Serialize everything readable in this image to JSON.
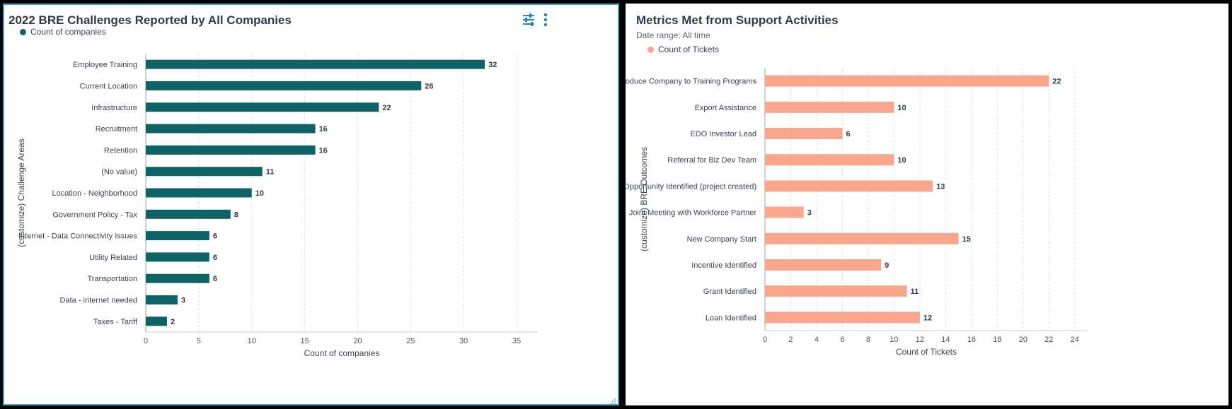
{
  "left_panel": {
    "title": "2022 BRE Challenges Reported by All Companies",
    "legend_label": "Count of companies",
    "icons": {
      "filter": "sliders-icon",
      "menu": "more-vertical-icon"
    }
  },
  "right_panel": {
    "title": "Metrics Met from Support Activities",
    "date_range_label": "Date range:",
    "date_range_value": "All time",
    "legend_label": "Count of Tickets"
  },
  "chart_data": [
    {
      "type": "bar",
      "orientation": "horizontal",
      "title": "2022 BRE Challenges Reported by All Companies",
      "xlabel": "Count of companies",
      "ylabel": "(customize) Challenge Areas",
      "color": "#0d6366",
      "xlim": [
        0,
        37
      ],
      "xticks": [
        0,
        5,
        10,
        15,
        20,
        25,
        30,
        35
      ],
      "grid": true,
      "legend": "top-left",
      "categories": [
        "Employee Training",
        "Current Location",
        "Infrastructure",
        "Recruitment",
        "Retention",
        "(No value)",
        "Location - Neighborhood",
        "Government Policy - Tax",
        "Internet - Data Connectivity Issues",
        "Utility Related",
        "Transportation",
        "Data - internet needed",
        "Taxes - Tariff"
      ],
      "series": [
        {
          "name": "Count of companies",
          "values": [
            32,
            26,
            22,
            16,
            16,
            11,
            10,
            8,
            6,
            6,
            6,
            3,
            2
          ]
        }
      ]
    },
    {
      "type": "bar",
      "orientation": "horizontal",
      "title": "Metrics Met from Support Activities",
      "xlabel": "Count of Tickets",
      "ylabel": "(customize) BRE Outcomes",
      "color": "#f9a68d",
      "xlim": [
        0,
        25
      ],
      "xticks": [
        0,
        2,
        4,
        6,
        8,
        10,
        12,
        14,
        16,
        18,
        20,
        22,
        24
      ],
      "grid": true,
      "legend": "top-left",
      "categories": [
        "Introduce Company to Training Programs",
        "Export Assistance",
        "EDO Investor Lead",
        "Referral for Biz Dev Team",
        "Expansion Opportunity Identified (project created)",
        "Joint Meeting with Workforce Partner",
        "New Company Start",
        "Incentive Identified",
        "Grant Identified",
        "Loan Identified"
      ],
      "series": [
        {
          "name": "Count of Tickets",
          "values": [
            22,
            10,
            6,
            10,
            13,
            3,
            15,
            9,
            11,
            12
          ]
        }
      ]
    }
  ]
}
